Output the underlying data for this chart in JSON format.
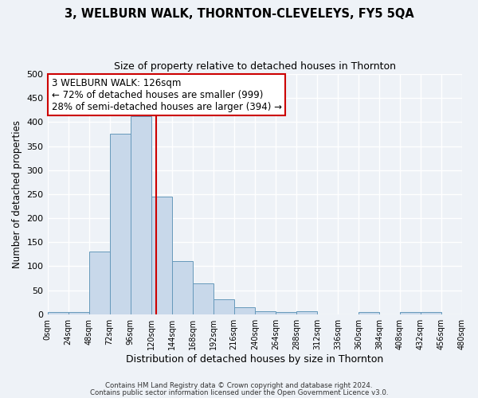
{
  "title": "3, WELBURN WALK, THORNTON-CLEVELEYS, FY5 5QA",
  "subtitle": "Size of property relative to detached houses in Thornton",
  "xlabel": "Distribution of detached houses by size in Thornton",
  "ylabel": "Number of detached properties",
  "bar_color": "#c8d8ea",
  "bar_edge_color": "#6699bb",
  "background_color": "#eef2f7",
  "grid_color": "#ffffff",
  "annotation_box_color": "#ffffff",
  "annotation_border_color": "#cc0000",
  "vline_color": "#cc0000",
  "vline_x": 126,
  "bin_edges": [
    0,
    24,
    48,
    72,
    96,
    120,
    144,
    168,
    192,
    216,
    240,
    264,
    288,
    312,
    336,
    360,
    384,
    408,
    432,
    456,
    480
  ],
  "bin_counts": [
    4,
    5,
    130,
    375,
    413,
    245,
    110,
    65,
    32,
    15,
    7,
    5,
    6,
    0,
    0,
    5,
    0,
    5,
    5,
    0
  ],
  "ylim": [
    0,
    500
  ],
  "xlim": [
    0,
    480
  ],
  "yticks": [
    0,
    50,
    100,
    150,
    200,
    250,
    300,
    350,
    400,
    450,
    500
  ],
  "xtick_labels": [
    "0sqm",
    "24sqm",
    "48sqm",
    "72sqm",
    "96sqm",
    "120sqm",
    "144sqm",
    "168sqm",
    "192sqm",
    "216sqm",
    "240sqm",
    "264sqm",
    "288sqm",
    "312sqm",
    "336sqm",
    "360sqm",
    "384sqm",
    "408sqm",
    "432sqm",
    "456sqm",
    "480sqm"
  ],
  "annotation_title": "3 WELBURN WALK: 126sqm",
  "annotation_line1": "← 72% of detached houses are smaller (999)",
  "annotation_line2": "28% of semi-detached houses are larger (394) →",
  "footer1": "Contains HM Land Registry data © Crown copyright and database right 2024.",
  "footer2": "Contains public sector information licensed under the Open Government Licence v3.0."
}
